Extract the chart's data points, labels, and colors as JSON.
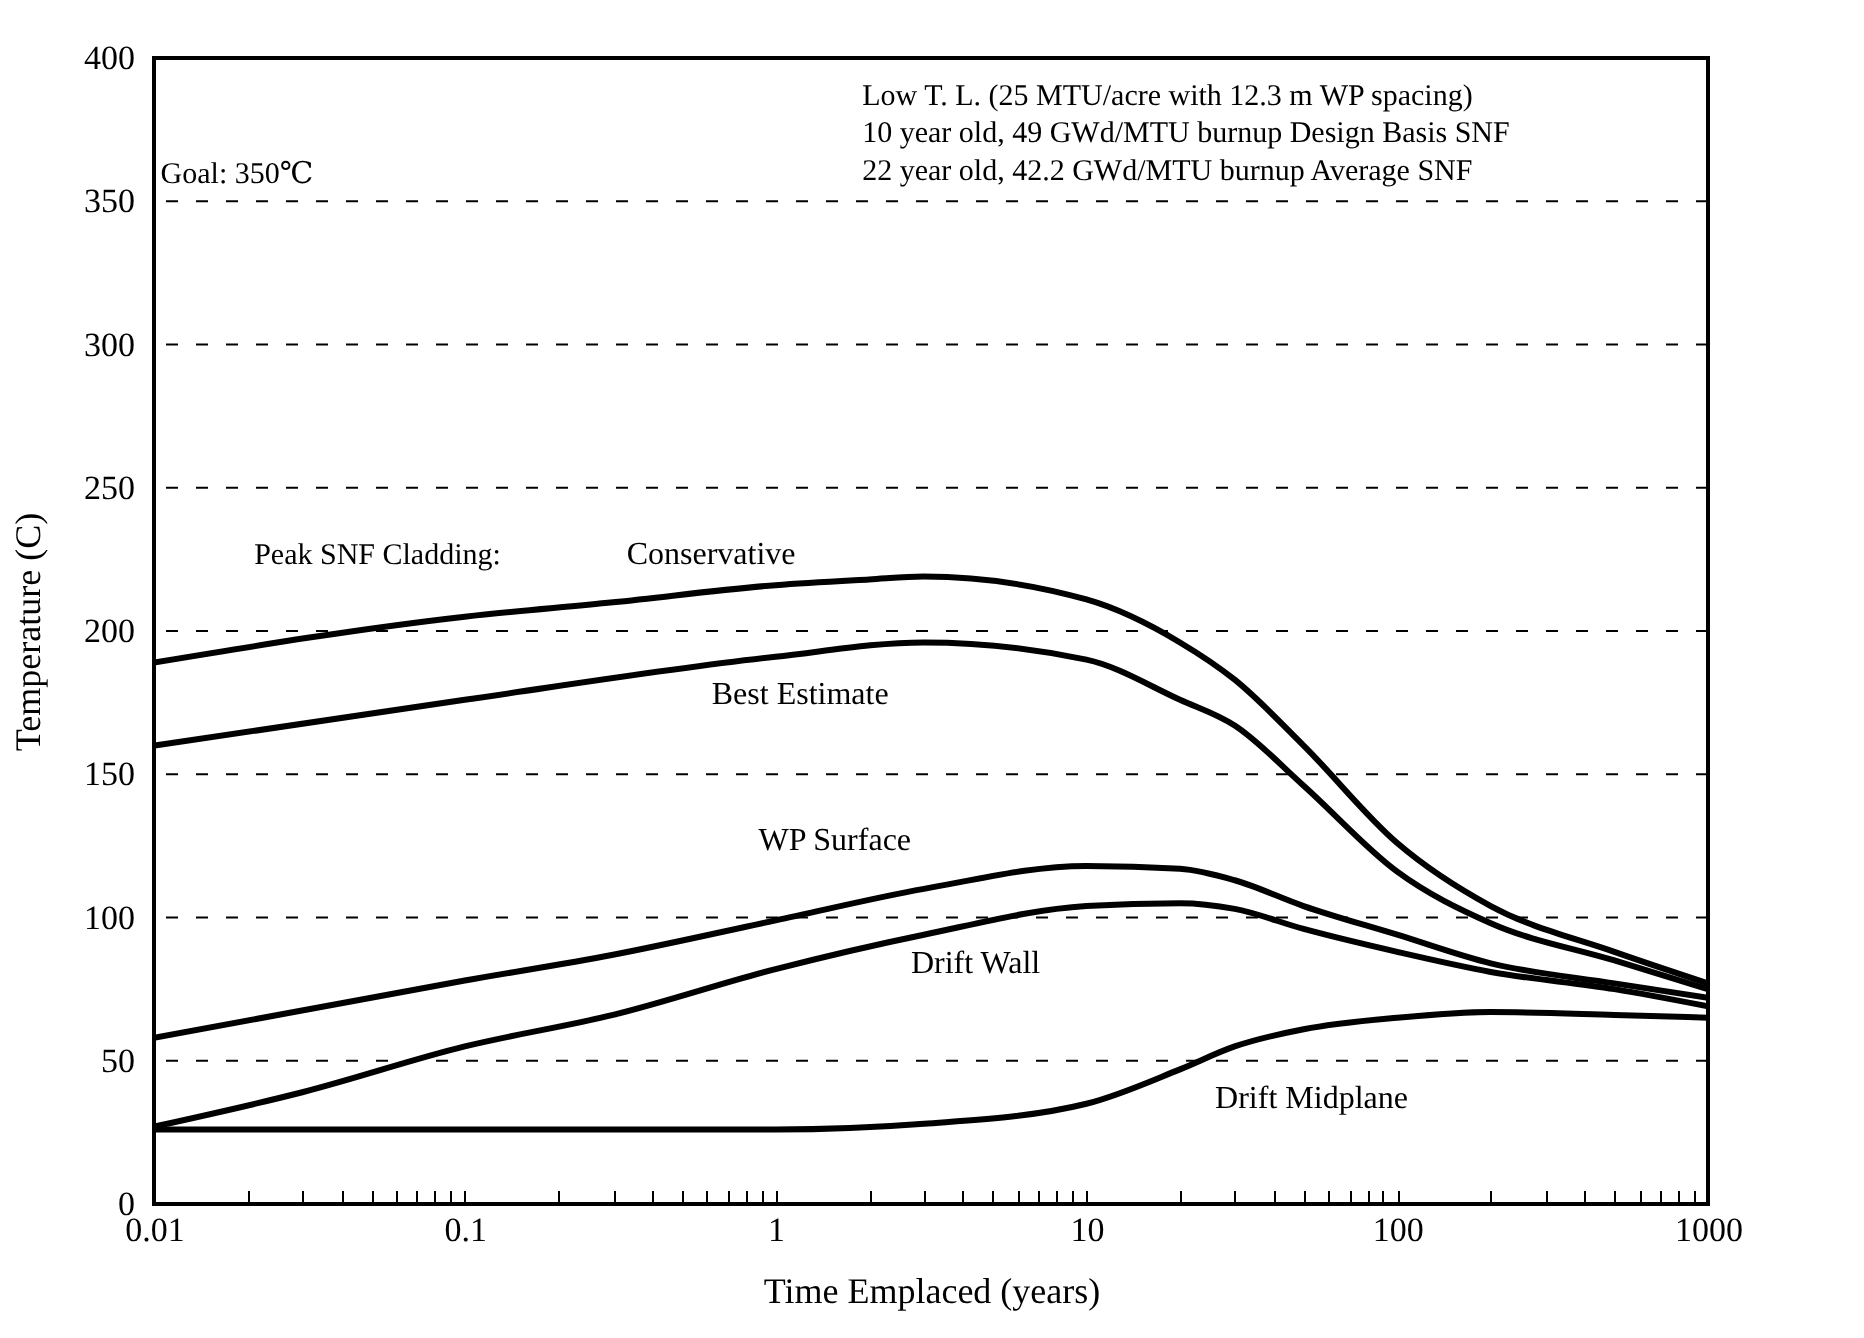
{
  "chart_data": {
    "type": "line",
    "xlabel": "Time Emplaced (years)",
    "ylabel": "Temperature (C)",
    "annotations": [
      "Goal: 350℃",
      "Low T. L. (25 MTU/acre with 12.3 m WP spacing)",
      "10 year old, 49 GWd/MTU burnup Design Basis SNF",
      "22 year old, 42.2 GWd/MTU burnup Average SNF",
      "Peak SNF Cladding:"
    ],
    "log": "x",
    "grid": "y",
    "line_style": "solid",
    "legend": false,
    "xlim": [
      0.01,
      1000
    ],
    "ylim": [
      0,
      400
    ],
    "xticks": [
      {
        "value": 0.01,
        "label": "0.01"
      },
      {
        "value": 0.02,
        "label": null
      },
      {
        "value": 0.03,
        "label": null
      },
      {
        "value": 0.04,
        "label": null
      },
      {
        "value": 0.05,
        "label": null
      },
      {
        "value": 0.06,
        "label": null
      },
      {
        "value": 0.07,
        "label": null
      },
      {
        "value": 0.08,
        "label": null
      },
      {
        "value": 0.09,
        "label": null
      },
      0.1,
      {
        "value": 0.2,
        "label": null
      },
      {
        "value": 0.3,
        "label": null
      },
      {
        "value": 0.4,
        "label": null
      },
      {
        "value": 0.5,
        "label": null
      },
      {
        "value": 0.6,
        "label": null
      },
      {
        "value": 0.7,
        "label": null
      },
      {
        "value": 0.8,
        "label": null
      },
      {
        "value": 0.9,
        "label": null
      },
      1,
      {
        "value": 2,
        "label": null
      },
      {
        "value": 3,
        "label": null
      },
      {
        "value": 4,
        "label": null
      },
      {
        "value": 5,
        "label": null
      },
      {
        "value": 6,
        "label": null
      },
      {
        "value": 7,
        "label": null
      },
      {
        "value": 8,
        "label": null
      },
      {
        "value": 9,
        "label": null
      },
      10,
      {
        "value": 20,
        "label": null
      },
      {
        "value": 30,
        "label": null
      },
      {
        "value": 40,
        "label": null
      },
      {
        "value": 50,
        "label": null
      },
      {
        "value": 60,
        "label": null
      },
      {
        "value": 70,
        "label": null
      },
      {
        "value": 80,
        "label": null
      },
      {
        "value": 90,
        "label": null
      },
      100,
      {
        "value": 200,
        "label": null
      },
      {
        "value": 300,
        "label": null
      },
      {
        "value": 400,
        "label": null
      },
      {
        "value": 500,
        "label": null
      },
      {
        "value": 600,
        "label": null
      },
      {
        "value": 700,
        "label": null
      },
      {
        "value": 800,
        "label": null
      },
      {
        "value": 900,
        "label": null
      },
      1000
    ],
    "yticks": [
      0,
      50,
      100,
      150,
      200,
      250,
      300,
      350,
      400
    ],
    "series": [
      {
        "name": "Conservative",
        "color": "#000000",
        "x": [
          0.01,
          0.1,
          0.3,
          1,
          2,
          3,
          10,
          20,
          30,
          50,
          100,
          200,
          500,
          1000
        ],
        "values": [
          189,
          205,
          210,
          216,
          218,
          219,
          211,
          196,
          183,
          160,
          126,
          104,
          88,
          77
        ]
      },
      {
        "name": "Best Estimate",
        "color": "#000000",
        "x": [
          0.01,
          0.1,
          1,
          3,
          10,
          20,
          30,
          50,
          100,
          200,
          500,
          1000
        ],
        "values": [
          160,
          176,
          191,
          196,
          190,
          176,
          167,
          146,
          116,
          98,
          85,
          75
        ]
      },
      {
        "name": "WP Surface",
        "color": "#000000",
        "x": [
          0.01,
          0.1,
          0.3,
          1,
          3,
          10,
          20,
          30,
          50,
          100,
          200,
          500,
          1000
        ],
        "values": [
          58,
          78,
          87,
          99,
          110,
          118,
          117,
          113,
          104,
          94,
          84,
          77,
          72
        ]
      },
      {
        "name": "Drift Wall",
        "color": "#000000",
        "x": [
          0.01,
          0.03,
          0.1,
          0.3,
          1,
          3,
          10,
          20,
          30,
          50,
          100,
          200,
          500,
          1000
        ],
        "values": [
          27,
          39,
          55,
          66,
          82,
          94,
          104,
          105,
          103,
          96,
          88,
          81,
          75,
          69
        ]
      },
      {
        "name": "Drift Midplane",
        "color": "#000000",
        "x": [
          0.01,
          0.1,
          1,
          3,
          10,
          20,
          30,
          50,
          100,
          200,
          500,
          1000
        ],
        "values": [
          26,
          26,
          26,
          28,
          35,
          47,
          55,
          61,
          65,
          67,
          66,
          65
        ]
      }
    ]
  }
}
